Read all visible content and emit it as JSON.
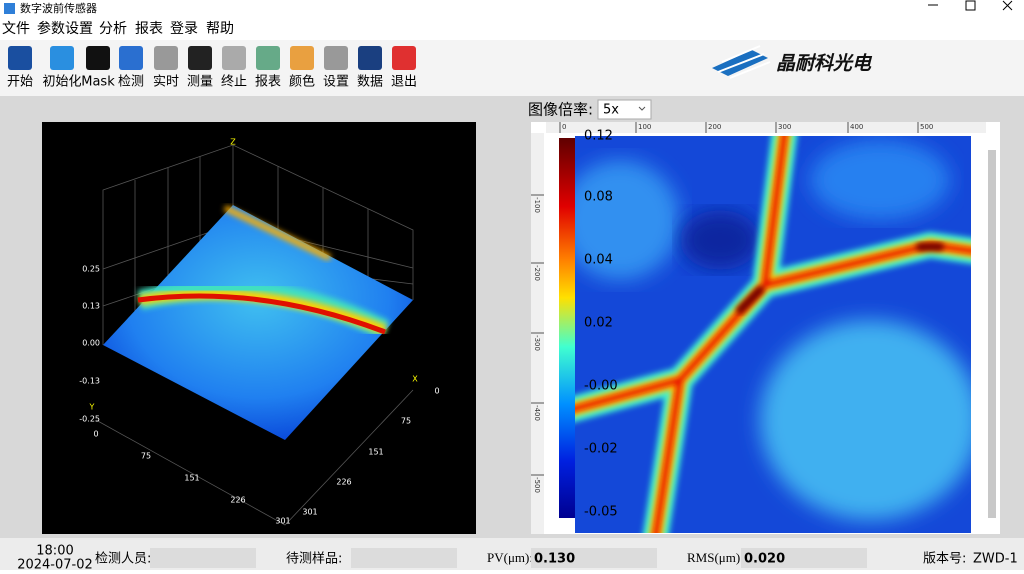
{
  "window": {
    "title": "数字波前传感器"
  },
  "menu": [
    "文件",
    "参数设置",
    "分析",
    "报表",
    "登录",
    "帮助"
  ],
  "toolbar": [
    "开始",
    "初始化",
    "Mask",
    "检测",
    "实时",
    "测量",
    "终止",
    "报表",
    "颜色",
    "设置",
    "数据",
    "退出"
  ],
  "logo": "晶耐科光电",
  "magnification": {
    "label": "图像倍率:",
    "value": "5x"
  },
  "plot3d": {
    "z_label": "Z",
    "z_ticks": [
      "0.25",
      "0.13",
      "0.00",
      "-0.13",
      "-0.25"
    ],
    "y_label": "Y",
    "y_ticks": [
      "0",
      "75",
      "151",
      "226",
      "301"
    ],
    "x_label": "X",
    "x_ticks": [
      "0",
      "75",
      "151",
      "226",
      "301"
    ]
  },
  "image": {
    "colorbar_ticks": [
      "0.12",
      "0.08",
      "0.04",
      "0.02",
      "-0.00",
      "-0.02",
      "-0.05"
    ],
    "top_ruler": [
      "0",
      "100",
      "200",
      "300",
      "400",
      "500"
    ],
    "left_ruler": [
      "-100",
      "-200",
      "-300",
      "-400",
      "-500"
    ]
  },
  "status": {
    "time": "18:00",
    "date": "2024-07-02",
    "inspector_label": "检测人员:",
    "sample_label": "待测样品:",
    "pv_label": "PV(μm):",
    "pv_value": "0.130",
    "rms_label": "RMS(μm):",
    "rms_value": "0.020",
    "version_label": "版本号:",
    "version_value": "ZWD-1"
  }
}
